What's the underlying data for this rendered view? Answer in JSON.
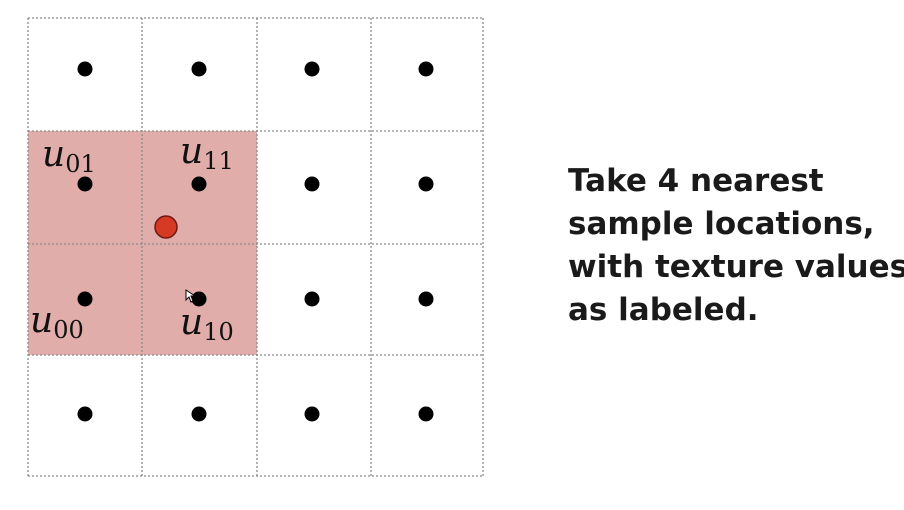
{
  "caption": {
    "lines": [
      "Take 4 nearest",
      "sample locations,",
      "with texture values",
      "as labeled."
    ]
  },
  "grid": {
    "cols": 4,
    "rows": 4,
    "highlight_cells": [
      [
        0,
        1
      ],
      [
        1,
        1
      ],
      [
        0,
        2
      ],
      [
        1,
        2
      ]
    ],
    "highlight_color": "#e0adab",
    "sample_point_color": "#000000",
    "query_point_color": "#d63a24"
  },
  "labels": {
    "u01": {
      "base": "u",
      "sub": "01"
    },
    "u11": {
      "base": "u",
      "sub": "11"
    },
    "u00": {
      "base": "u",
      "sub": "00"
    },
    "u10": {
      "base": "u",
      "sub": "10"
    }
  }
}
